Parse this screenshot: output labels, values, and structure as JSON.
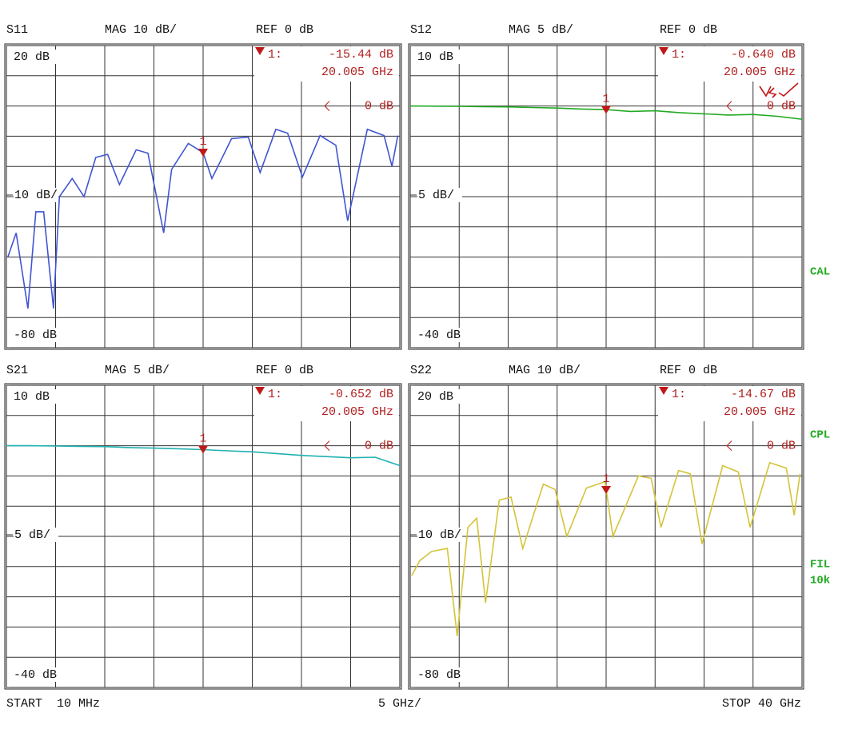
{
  "chart_data": [
    {
      "type": "line",
      "title": "S11",
      "header_mag": "MAG 10 dB/",
      "header_ref": "REF 0 dB",
      "scale_label": "10 dB/",
      "xlim": [
        0.01,
        40
      ],
      "ylim": [
        -80,
        20
      ],
      "yticks": [
        {
          "value": 20,
          "label": "20 dB"
        },
        {
          "value": -80,
          "label": "-80 dB"
        }
      ],
      "x_divisions": 8,
      "y_divisions": 10,
      "grid": true,
      "ref": {
        "value": 0,
        "label": "0 dB"
      },
      "series": [
        {
          "color": "#4055d0",
          "x": [
            0.16,
            1,
            2.2,
            3,
            3.8,
            4.8,
            5.4,
            6.7,
            7.9,
            9.1,
            10.3,
            11.5,
            13.2,
            14.4,
            16,
            16.8,
            18.5,
            20,
            20.9,
            22.9,
            24.6,
            25.8,
            27.4,
            28.6,
            30.1,
            31.9,
            33.5,
            34.7,
            36.7,
            38.4,
            39.2,
            39.8
          ],
          "values": [
            -50,
            -42,
            -67,
            -35,
            -35,
            -67,
            -30,
            -24,
            -30,
            -17,
            -16,
            -26,
            -14.5,
            -15.6,
            -42,
            -21,
            -12.4,
            -15.4,
            -24,
            -10.8,
            -10.3,
            -22,
            -7.7,
            -9,
            -23.5,
            -9.8,
            -13,
            -38,
            -7.7,
            -9.8,
            -20,
            -9.8
          ]
        }
      ],
      "marker": {
        "tag": "1",
        "id": "1:",
        "x": 20.005,
        "x_label": "20.005 GHz",
        "value": -15.44,
        "value_label": "-15.44 dB"
      }
    },
    {
      "type": "line",
      "title": "S12",
      "header_mag": "MAG 5 dB/",
      "header_ref": "REF 0 dB",
      "scale_label": "5 dB/",
      "xlim": [
        0.01,
        40
      ],
      "ylim": [
        -40,
        10
      ],
      "yticks": [
        {
          "value": 10,
          "label": "10 dB"
        },
        {
          "value": -40,
          "label": "-40 dB"
        }
      ],
      "x_divisions": 8,
      "y_divisions": 10,
      "grid": true,
      "ref": {
        "value": 0,
        "label": "0 dB"
      },
      "series": [
        {
          "color": "#22aa22",
          "x": [
            0.01,
            2.5,
            5,
            7.5,
            10,
            12.5,
            15,
            17.5,
            20,
            22.5,
            25,
            27.5,
            30,
            32.5,
            35,
            37.5,
            40
          ],
          "values": [
            0,
            -0.02,
            -0.05,
            -0.1,
            -0.15,
            -0.25,
            -0.35,
            -0.5,
            -0.6,
            -0.9,
            -0.8,
            -1.1,
            -1.3,
            -1.5,
            -1.4,
            -1.7,
            -2.2
          ]
        }
      ],
      "marker": {
        "tag": "1",
        "id": "1:",
        "x": 20.005,
        "x_label": "20.005 GHz",
        "value": -0.64,
        "value_label": "-0.640 dB"
      }
    },
    {
      "type": "line",
      "title": "S21",
      "header_mag": "MAG 5 dB/",
      "header_ref": "REF 0 dB",
      "scale_label": "5 dB/",
      "xlim": [
        0.01,
        40
      ],
      "ylim": [
        -40,
        10
      ],
      "yticks": [
        {
          "value": 10,
          "label": "10 dB"
        },
        {
          "value": -40,
          "label": "-40 dB"
        }
      ],
      "x_divisions": 8,
      "y_divisions": 10,
      "grid": true,
      "ref": {
        "value": 0,
        "label": "0 dB"
      },
      "series": [
        {
          "color": "#20b0b0",
          "x": [
            0.01,
            2.5,
            5,
            7.5,
            10,
            12.5,
            15,
            17.5,
            20,
            22.5,
            25,
            27.5,
            30,
            32.5,
            35,
            37.5,
            40
          ],
          "values": [
            0,
            0,
            -0.05,
            -0.1,
            -0.15,
            -0.3,
            -0.4,
            -0.5,
            -0.65,
            -0.85,
            -1.0,
            -1.3,
            -1.6,
            -1.8,
            -2.0,
            -1.9,
            -3.3
          ]
        }
      ],
      "marker": {
        "tag": "1",
        "id": "1:",
        "x": 20.005,
        "x_label": "20.005 GHz",
        "value": -0.652,
        "value_label": "-0.652 dB"
      }
    },
    {
      "type": "line",
      "title": "S22",
      "header_mag": "MAG 10 dB/",
      "header_ref": "REF 0 dB",
      "scale_label": "10 dB/",
      "xlim": [
        0.01,
        40
      ],
      "ylim": [
        -80,
        20
      ],
      "yticks": [
        {
          "value": 20,
          "label": "20 dB"
        },
        {
          "value": -80,
          "label": "-80 dB"
        }
      ],
      "x_divisions": 8,
      "y_divisions": 10,
      "grid": true,
      "ref": {
        "value": 0,
        "label": "0 dB"
      },
      "series": [
        {
          "color": "#d4c43a",
          "x": [
            0.16,
            1,
            2.2,
            3.8,
            4.8,
            5.9,
            6.8,
            7.7,
            9.1,
            10.3,
            11.5,
            13.6,
            14.8,
            16,
            18,
            19.9,
            20.7,
            23.3,
            24.6,
            25.6,
            27.4,
            28.6,
            29.8,
            31.9,
            33.5,
            34.7,
            36.7,
            38.4,
            39.2,
            39.8
          ],
          "values": [
            -43,
            -38,
            -35,
            -34,
            -63,
            -27,
            -24,
            -52,
            -18,
            -17,
            -34,
            -12.7,
            -14.5,
            -30,
            -14,
            -11.9,
            -30,
            -10,
            -10.8,
            -27,
            -8.2,
            -9.3,
            -32.5,
            -6.6,
            -8.7,
            -27,
            -5.6,
            -7.4,
            -23,
            -9.3
          ]
        }
      ],
      "marker": {
        "tag": "1",
        "id": "1:",
        "x": 20.005,
        "x_label": "20.005 GHz",
        "value": -14.67,
        "value_label": "-14.67 dB"
      }
    }
  ],
  "footer": {
    "start": "START  10 MHz",
    "scale": "5 GHz/",
    "stop": "STOP 40 GHz"
  },
  "side_labels": [
    "CAL",
    "CPL",
    "FIL",
    "10k"
  ]
}
